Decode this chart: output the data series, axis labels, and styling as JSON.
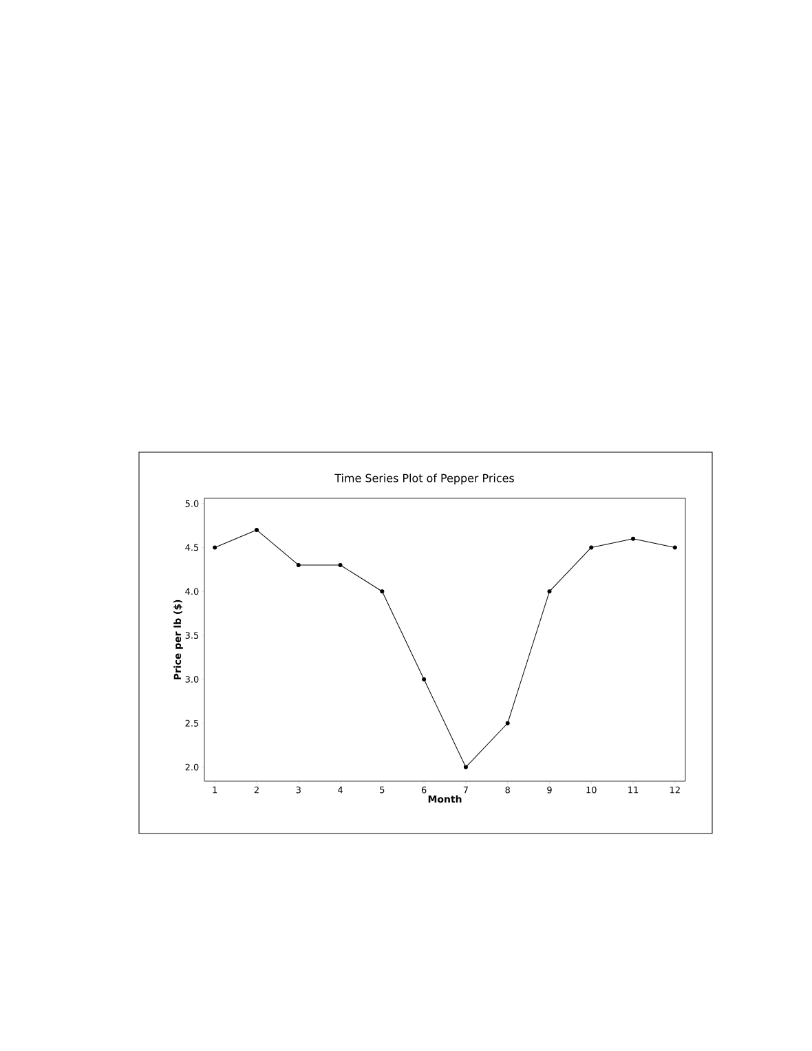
{
  "chart_data": {
    "type": "line",
    "title": "Time Series Plot of Pepper Prices",
    "xlabel": "Month",
    "ylabel": "Price per lb ($)",
    "x": [
      1,
      2,
      3,
      4,
      5,
      6,
      7,
      8,
      9,
      10,
      11,
      12
    ],
    "values": [
      4.5,
      4.7,
      4.3,
      4.3,
      4.0,
      3.0,
      2.0,
      2.5,
      4.0,
      4.5,
      4.6,
      4.5
    ],
    "color": "#000000",
    "marker": "circle",
    "xlim": [
      0.75,
      12.25
    ],
    "ylim": [
      1.84,
      5.06
    ],
    "xticks": [
      1,
      2,
      3,
      4,
      5,
      6,
      7,
      8,
      9,
      10,
      11,
      12
    ],
    "yticks": [
      {
        "value": 2,
        "label": "2.0"
      },
      {
        "value": 2.5,
        "label": "2.5"
      },
      {
        "value": 3,
        "label": "3.0"
      },
      {
        "value": 3.5,
        "label": "3.5"
      },
      {
        "value": 4,
        "label": "4.0"
      },
      {
        "value": 4.5,
        "label": "4.5"
      },
      {
        "value": 5,
        "label": "5.0"
      }
    ]
  }
}
